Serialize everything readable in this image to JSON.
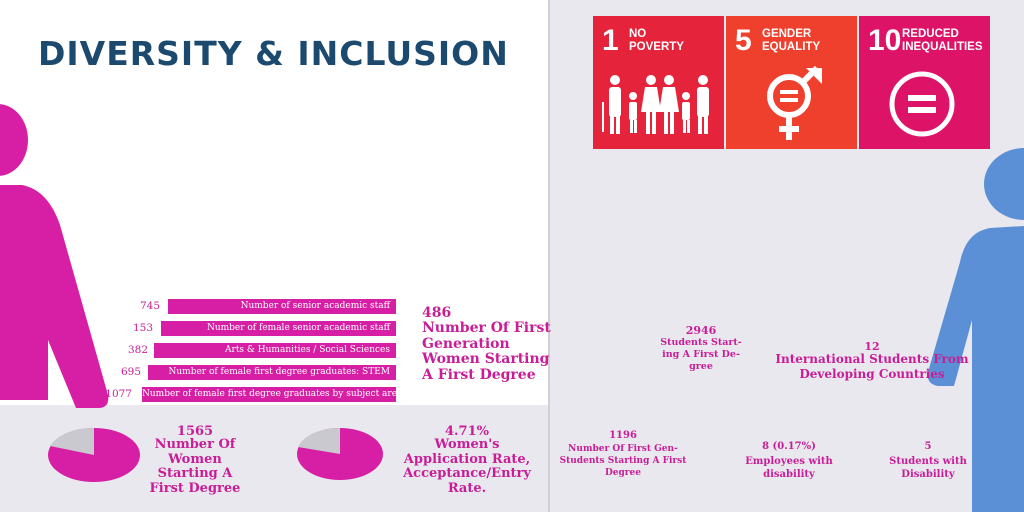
{
  "title": "DIVERSITY & INCLUSION",
  "sdgs": [
    {
      "number": "1",
      "label": "NO\nPOVERTY",
      "color": "#e5243b",
      "icon": "family-icon"
    },
    {
      "number": "5",
      "label": "GENDER\nEQUALITY",
      "color": "#ef402d",
      "icon": "gender-equality-icon"
    },
    {
      "number": "10",
      "label": "REDUCED\nINEQUALITIES",
      "color": "#dd1367",
      "icon": "equals-circle-icon"
    }
  ],
  "bars": [
    {
      "value": "745",
      "label": "Number of senior academic staff"
    },
    {
      "value": "153",
      "label": "Number of female senior academic staff"
    },
    {
      "value": "382",
      "label": "Arts & Humanities / Social Sciences"
    },
    {
      "value": "695",
      "label": "Number of female first degree graduates: STEM"
    },
    {
      "value": "1077",
      "label": "Number of female first degree graduates by subject area"
    }
  ],
  "first_gen_women": {
    "value": "486",
    "text": "Number Of First\nGeneration\nWomen Starting\nA First Degree"
  },
  "women_starting": {
    "value": "1565",
    "text": "Number Of\nWomen\nStarting A\nFirst Degree"
  },
  "women_app_rate": {
    "value": "4.71%",
    "text": "Women's\nApplication Rate,\nAcceptance/Entry\nRate."
  },
  "students_starting": {
    "value": "2946",
    "text": "Students Start-\ning A First De-\ngree"
  },
  "international": {
    "value": "12",
    "text": "International Students From\nDeveloping Countries"
  },
  "first_gen_students": {
    "value": "1196",
    "text": "Number Of First Gen-\nStudents Starting A First\nDegree"
  },
  "employees_disability": {
    "value": "8 (0.17%)",
    "text": "Employees with\ndisability"
  },
  "students_disability": {
    "value": "5",
    "text": "Students with\nDisability"
  },
  "colors": {
    "magenta": "#d61fa4",
    "navy": "#1c4a6e",
    "blue": "#5b8fd6"
  }
}
